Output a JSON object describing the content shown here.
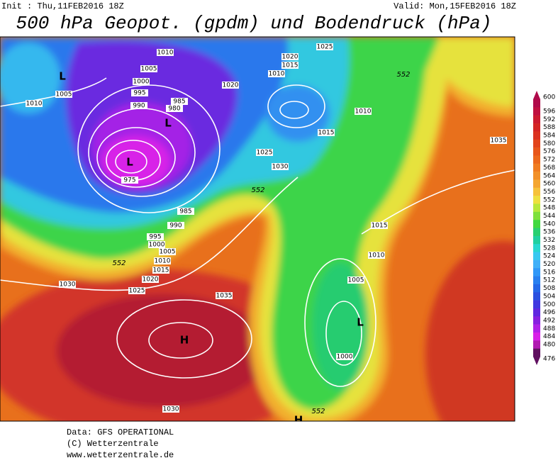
{
  "header": {
    "init": "Init : Thu,11FEB2016 18Z",
    "valid": "Valid: Mon,15FEB2016 18Z",
    "title": "500 hPa Geopot. (gpdm) und Bodendruck (hPa)"
  },
  "map": {
    "pressure_labels": [
      1010,
      1010,
      1005,
      1000,
      995,
      990,
      985,
      980,
      975,
      985,
      990,
      995,
      1000,
      1005,
      1010,
      1015,
      1020,
      1025,
      1030,
      1035,
      1030,
      1005,
      1010,
      1020,
      1025,
      1030,
      1020,
      1015,
      1010,
      1025,
      1010,
      1015,
      1035,
      1015,
      1010,
      1005,
      1000
    ],
    "geopotential_labels": [
      552,
      552,
      552,
      552
    ],
    "pressure_centers": [
      "L",
      "L",
      "L",
      "L",
      "H",
      "H"
    ]
  },
  "colorbar": {
    "values": [
      600,
      596,
      592,
      588,
      584,
      580,
      576,
      572,
      568,
      564,
      560,
      556,
      552,
      548,
      544,
      540,
      536,
      532,
      528,
      524,
      520,
      516,
      512,
      508,
      504,
      500,
      496,
      492,
      488,
      484,
      480,
      476
    ],
    "colors": [
      "#b00a4a",
      "#c01040",
      "#cc1a30",
      "#d42424",
      "#dc3220",
      "#e2441c",
      "#e8561a",
      "#ec681c",
      "#f07c20",
      "#f29028",
      "#f4a630",
      "#f6c23a",
      "#eee040",
      "#b8e83c",
      "#7ee03c",
      "#40d840",
      "#28d070",
      "#20d0a0",
      "#28d8d0",
      "#38c8f0",
      "#40b0f8",
      "#3098f8",
      "#2880f0",
      "#2468e8",
      "#2a50e0",
      "#4038e0",
      "#6028e0",
      "#8820e0",
      "#b020e8",
      "#d820e8",
      "#b01ab0",
      "#601060"
    ]
  },
  "footer": {
    "data": "Data: GFS OPERATIONAL",
    "copyright": "(C) Wetterzentrale",
    "url": "www.wetterzentrale.de"
  }
}
